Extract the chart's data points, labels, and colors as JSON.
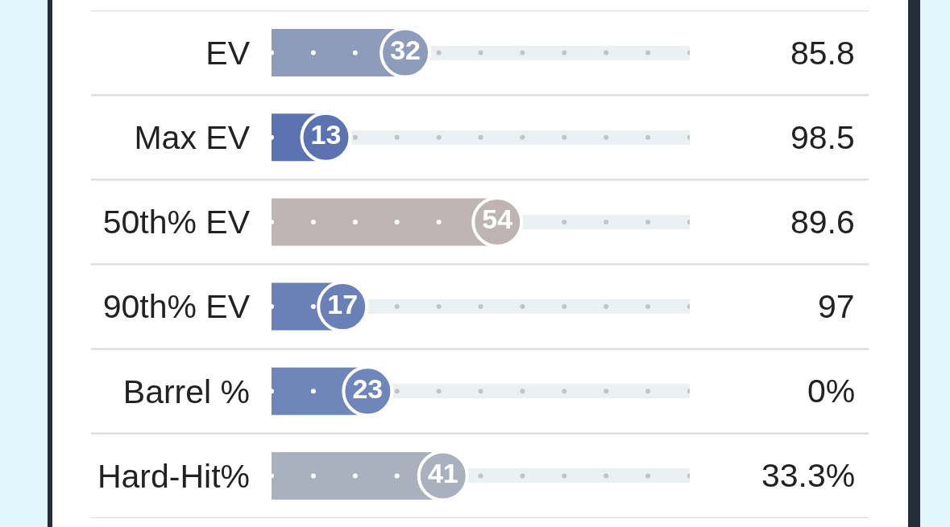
{
  "chart_data": {
    "type": "lollipop",
    "orientation": "horizontal",
    "categories": [
      "EV",
      "Max EV",
      "50th% EV",
      "90th% EV",
      "Barrel %",
      "Hard-Hit%"
    ],
    "values": [
      32,
      13,
      54,
      17,
      23,
      41
    ],
    "colors": [
      "#8e9cbc",
      "#5b73b1",
      "#bfb4b4",
      "#6a81b8",
      "#6f86ba",
      "#a9b0be"
    ],
    "xlim": [
      0,
      100
    ],
    "tick_labels": "y",
    "grid": "y",
    "marker": "circle",
    "data_labels": true,
    "annotations": [
      "85.8",
      "98.5",
      "89.6",
      "97",
      "0%",
      "33.3%"
    ]
  }
}
